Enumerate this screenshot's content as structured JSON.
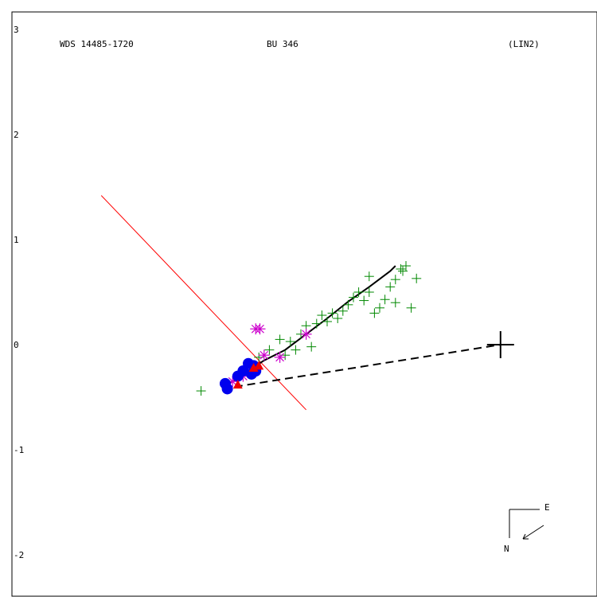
{
  "header": {
    "left": "WDS 14485-1720",
    "center": "BU  346",
    "right": "(LIN2)"
  },
  "compass": {
    "east_label": "E",
    "north_label": "N"
  },
  "colors": {
    "frame": "#000000",
    "axis_line": "#ff0000",
    "green_obs": "#008800",
    "magenta_obs": "#cc00cc",
    "blue_obs": "#0000ee",
    "red_obs": "#ee0000",
    "orbit": "#000000"
  },
  "chart_data": {
    "type": "scatter",
    "title": "",
    "xlabel": "",
    "ylabel": "",
    "ylim": [
      -2.3,
      3.1
    ],
    "xlim": [
      -0.1,
      5.3
    ],
    "y_ticks": [
      "3",
      "2",
      "1",
      "0",
      "-1",
      "-2"
    ],
    "primary_star": [
      4.55,
      0.0
    ],
    "line_of_nodes": [
      [
        0.75,
        1.42
      ],
      [
        2.7,
        -0.62
      ]
    ],
    "orbit_arc": [
      [
        1.9,
        -0.42
      ],
      [
        2.1,
        -0.28
      ],
      [
        2.3,
        -0.15
      ],
      [
        2.5,
        -0.05
      ],
      [
        2.7,
        0.1
      ],
      [
        2.9,
        0.25
      ],
      [
        3.1,
        0.41
      ],
      [
        3.3,
        0.55
      ],
      [
        3.5,
        0.7
      ],
      [
        3.55,
        0.75
      ]
    ],
    "periastron_line": [
      [
        1.9,
        -0.42
      ],
      [
        4.55,
        0.0
      ]
    ],
    "green_points": [
      [
        1.7,
        -0.44
      ],
      [
        2.1,
        -0.25
      ],
      [
        2.25,
        -0.12
      ],
      [
        2.35,
        -0.05
      ],
      [
        2.45,
        0.05
      ],
      [
        2.5,
        -0.1
      ],
      [
        2.55,
        0.03
      ],
      [
        2.6,
        -0.05
      ],
      [
        2.65,
        0.1
      ],
      [
        2.7,
        0.18
      ],
      [
        2.75,
        -0.02
      ],
      [
        2.8,
        0.2
      ],
      [
        2.85,
        0.28
      ],
      [
        2.9,
        0.22
      ],
      [
        2.95,
        0.3
      ],
      [
        3.0,
        0.25
      ],
      [
        3.05,
        0.32
      ],
      [
        3.1,
        0.38
      ],
      [
        3.15,
        0.45
      ],
      [
        3.2,
        0.5
      ],
      [
        3.25,
        0.42
      ],
      [
        3.3,
        0.5
      ],
      [
        3.35,
        0.3
      ],
      [
        3.4,
        0.35
      ],
      [
        3.45,
        0.43
      ],
      [
        3.5,
        0.55
      ],
      [
        3.55,
        0.62
      ],
      [
        3.3,
        0.65
      ],
      [
        3.55,
        0.4
      ],
      [
        3.6,
        0.72
      ],
      [
        3.62,
        0.7
      ],
      [
        3.65,
        0.75
      ],
      [
        3.75,
        0.63
      ],
      [
        3.7,
        0.35
      ]
    ],
    "magenta_points": [
      [
        2.0,
        -0.35
      ],
      [
        2.1,
        -0.3
      ],
      [
        2.22,
        0.15
      ],
      [
        2.26,
        0.15
      ],
      [
        2.3,
        -0.1
      ],
      [
        2.45,
        -0.12
      ],
      [
        2.7,
        0.1
      ]
    ],
    "blue_points": [
      [
        1.93,
        -0.37
      ],
      [
        1.95,
        -0.42
      ],
      [
        2.05,
        -0.3
      ],
      [
        2.1,
        -0.25
      ],
      [
        2.15,
        -0.18
      ],
      [
        2.2,
        -0.2
      ],
      [
        2.22,
        -0.25
      ],
      [
        2.18,
        -0.28
      ]
    ],
    "red_points": [
      [
        2.05,
        -0.38
      ],
      [
        2.2,
        -0.22
      ],
      [
        2.25,
        -0.2
      ]
    ]
  }
}
